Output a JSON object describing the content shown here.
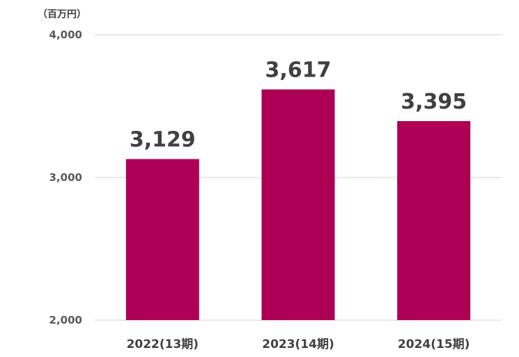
{
  "chart_data": {
    "type": "bar",
    "unit_label": "（百万円）",
    "categories": [
      "2022(13期)",
      "2023(14期)",
      "2024(15期)"
    ],
    "values": [
      3129,
      3617,
      3395
    ],
    "value_labels": [
      "3,129",
      "3,617",
      "3,395"
    ],
    "yticks": [
      2000,
      3000,
      4000
    ],
    "ytick_labels": [
      "2,000",
      "3,000",
      "4,000"
    ],
    "ylim": [
      2000,
      4000
    ],
    "grid": true,
    "bar_color": "#ad0055",
    "title": "",
    "xlabel": "",
    "ylabel": ""
  }
}
